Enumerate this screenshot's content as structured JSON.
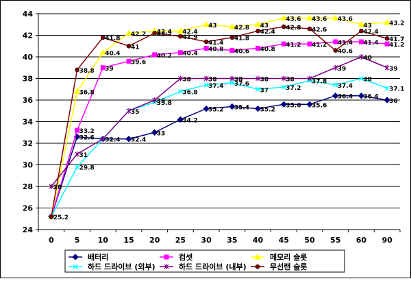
{
  "chart_data": {
    "type": "line",
    "title": "",
    "xlabel": "",
    "ylabel": "",
    "x": [
      "0",
      "5",
      "10",
      "15",
      "20",
      "25",
      "30",
      "35",
      "40",
      "45",
      "50",
      "55",
      "60",
      "90"
    ],
    "ylim": [
      24,
      44
    ],
    "yticks": [
      "24",
      "26",
      "28",
      "30",
      "32",
      "34",
      "36",
      "38",
      "40",
      "42",
      "44"
    ],
    "grid": "horizontal",
    "legend_position": "bottom",
    "series": [
      {
        "name": "배터리",
        "color": "#000080",
        "marker": "diamond",
        "values": [
          25.2,
          32.6,
          32.4,
          32.4,
          33,
          34.2,
          35.2,
          35.4,
          35.2,
          35.6,
          35.6,
          36.4,
          36.4,
          36
        ],
        "labels": [
          "",
          "32.6",
          "32.4",
          "32.4",
          "33",
          "34.2",
          "35.2",
          "35.4",
          "35.2",
          "35.6",
          "35.6",
          "36.4",
          "36.4",
          "36"
        ]
      },
      {
        "name": "컴셋",
        "color": "#ff00ff",
        "marker": "square",
        "values": [
          25.2,
          33.2,
          39,
          39.6,
          40.2,
          40.4,
          40.8,
          40.6,
          40.8,
          41.2,
          41.2,
          41.4,
          41.4,
          41.2
        ],
        "labels": [
          "",
          "33.2",
          "39",
          "39.6",
          "40.2",
          "40.4",
          "40.8",
          "40.6",
          "40.8",
          "41.2",
          "41.2",
          "41.4",
          "41.4",
          "41.2"
        ]
      },
      {
        "name": "메모리 슬롯",
        "color": "#ffff00",
        "marker": "triangle",
        "values": [
          25.2,
          36.8,
          40.4,
          42.2,
          42.4,
          42.4,
          43,
          42.8,
          43,
          43.6,
          43.6,
          43.6,
          43,
          43.2
        ],
        "labels": [
          "",
          "36.8",
          "40.4",
          "42.2",
          "42.4",
          "42.4",
          "43",
          "42.8",
          "43",
          "43.6",
          "43.6",
          "43.6",
          "43",
          "43.2"
        ]
      },
      {
        "name": "하드 드라이브 (외부)",
        "color": "#00ffff",
        "marker": "x",
        "values": [
          25.2,
          29.8,
          32.4,
          35,
          35.8,
          36.8,
          37.4,
          37.6,
          37,
          37.2,
          37.8,
          37.4,
          38,
          37.1
        ],
        "labels": [
          "",
          "29.8",
          "",
          "35",
          "35.8",
          "36.8",
          "37.4",
          "37.6",
          "37",
          "37.2",
          "37.8",
          "37.4",
          "38",
          "37.1"
        ]
      },
      {
        "name": "하드 드라이브 (내부)",
        "color": "#800080",
        "marker": "star",
        "values": [
          28,
          31,
          32.4,
          35,
          36,
          38,
          38,
          38,
          38,
          38,
          38,
          39,
          40,
          39
        ],
        "labels": [
          "28",
          "31",
          "",
          "",
          "36",
          "38",
          "38",
          "38",
          "38",
          "38",
          "",
          "39",
          "40",
          "39"
        ]
      },
      {
        "name": "무선랜 슬롯",
        "color": "#800000",
        "marker": "circle",
        "values": [
          25.2,
          38.8,
          41.8,
          41,
          42.2,
          41.9,
          41.4,
          41.8,
          42.4,
          42.8,
          42.6,
          40.6,
          42.4,
          41.7
        ],
        "labels": [
          "25.2",
          "38.8",
          "41.8",
          "41",
          "42.2",
          "41.9",
          "41.4",
          "41.8",
          "42.4",
          "42.8",
          "42.6",
          "40.6",
          "42.4",
          "41.7"
        ]
      }
    ]
  }
}
